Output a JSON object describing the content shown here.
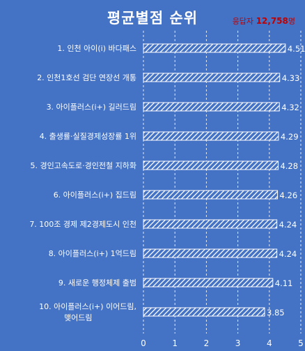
{
  "header": {
    "title": "평균별점 순위",
    "respondents_label": "응답자",
    "respondents_value": "12,758",
    "respondents_unit": "명"
  },
  "colors": {
    "background": "#4472c4",
    "bar_stroke": "#ffffff",
    "bar_hatch": "#ffffff",
    "text": "#ffffff",
    "accent": "#c00000"
  },
  "chart_data": {
    "type": "bar",
    "orientation": "horizontal",
    "categories": [
      "1. 인천 아이(i) 바다패스",
      "2. 인천1호선 검단 연장선 개통",
      "3. 아이플러스(i+) 길러드림",
      "4. 출생률·실질경제성장률 1위",
      "5. 경인고속도로·경인전철 지하화",
      "6. 아이플러스(i+) 집드림",
      "7. 100조 경제 제2경제도시 인천",
      "8. 아이플러스(i+) 1억드림",
      "9. 새로운 행정체제 출범",
      "10. 아이플러스(i+) 이어드림, 맺어드림"
    ],
    "values": [
      4.51,
      4.33,
      4.32,
      4.29,
      4.28,
      4.26,
      4.24,
      4.24,
      4.11,
      3.85
    ],
    "value_labels": [
      "4.51",
      "4.33",
      "4.32",
      "4.29",
      "4.28",
      "4.26",
      "4.24",
      "4.24",
      "4.11",
      "3.85"
    ],
    "xlim": [
      0,
      5
    ],
    "x_ticks": [
      "0",
      "1",
      "2",
      "3",
      "4",
      "5"
    ],
    "grid": true,
    "title": "평균별점 순위"
  }
}
